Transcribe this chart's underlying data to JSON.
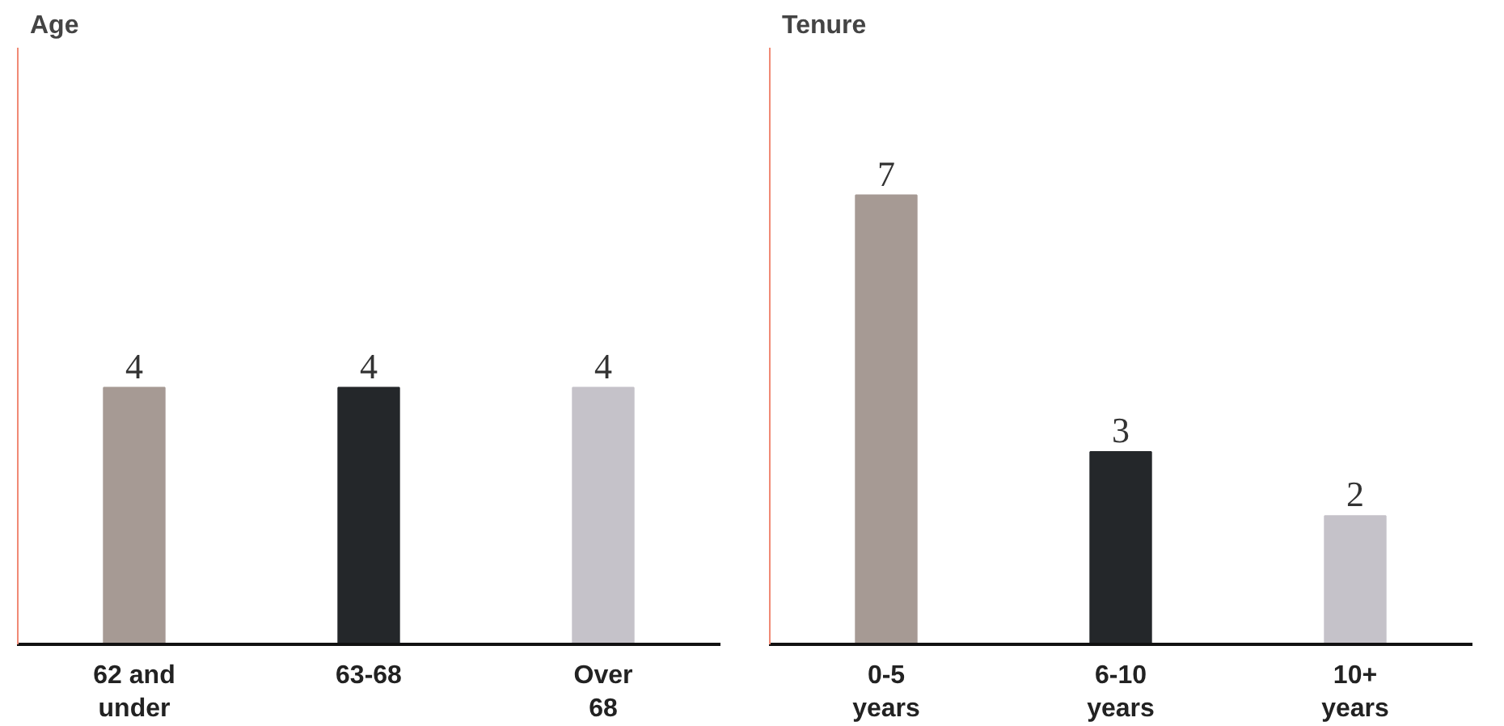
{
  "chart_data": [
    {
      "type": "bar",
      "title": "Age",
      "categories": [
        "62 and under",
        "63-68",
        "Over 68"
      ],
      "values": [
        4,
        4,
        4
      ],
      "colors": [
        "#a69a94",
        "#24272a",
        "#c5c2c9"
      ],
      "ylim": [
        0,
        9.3
      ],
      "data_labels": true
    },
    {
      "type": "bar",
      "title": "Tenure",
      "categories": [
        "0-5 years",
        "6-10 years",
        "10+ years"
      ],
      "values": [
        7,
        3,
        2
      ],
      "colors": [
        "#a69a94",
        "#24272a",
        "#c5c2c9"
      ],
      "ylim": [
        0,
        9.3
      ],
      "data_labels": true
    }
  ]
}
